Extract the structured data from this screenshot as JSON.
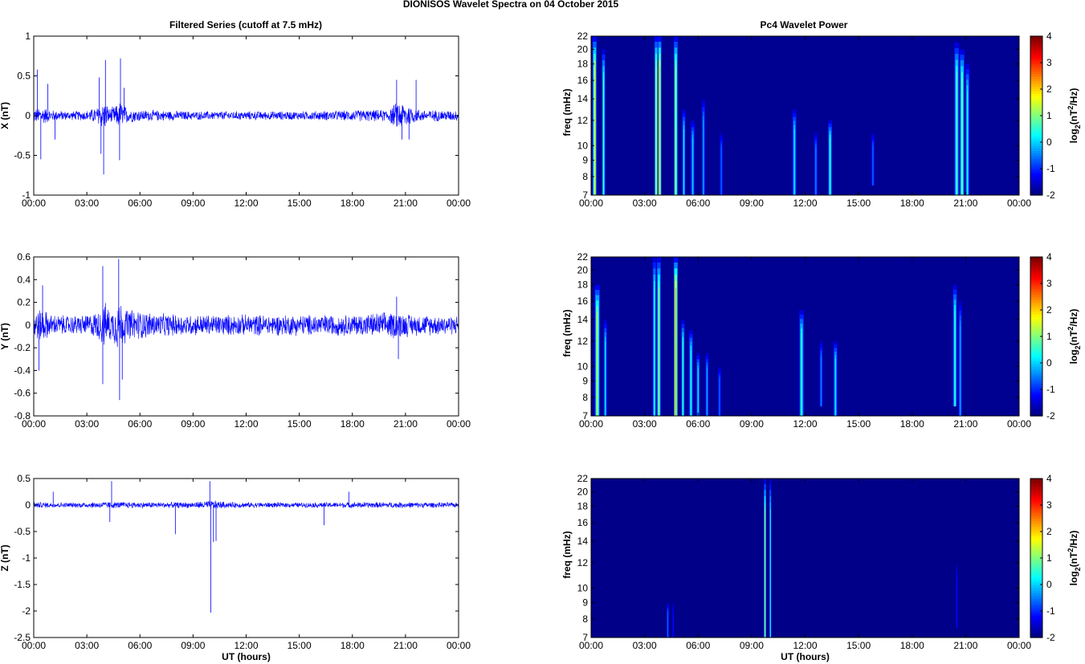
{
  "figure": {
    "title": "DIONISOS Wavelet Spectra on 04 October   2015",
    "left_column_title": "Filtered Series (cutoff at 7.5 mHz)",
    "right_column_title": "Pc4 Wavelet Power",
    "xlabel": "UT (hours)"
  },
  "chart_data": [
    {
      "type": "line",
      "panel": "X",
      "ylabel": "X (nT)",
      "xlabel": "",
      "xlim": [
        0,
        24
      ],
      "ylim": [
        -1,
        1
      ],
      "x_ticks": [
        "00:00",
        "03:00",
        "06:00",
        "09:00",
        "12:00",
        "15:00",
        "18:00",
        "21:00",
        "00:00"
      ],
      "y_ticks": [
        "-1",
        "-0.5",
        "0",
        "0.5",
        "1"
      ],
      "y_tick_values": [
        -1,
        -0.5,
        0,
        0.5,
        1
      ],
      "color": "#0000ff",
      "noise_envelope": {
        "x": [
          0,
          0.5,
          1,
          2,
          3,
          3.6,
          4,
          4.3,
          4.7,
          4.9,
          5.3,
          6,
          9,
          12,
          15,
          17.5,
          18.5,
          20,
          20.6,
          21,
          21.5,
          22,
          24
        ],
        "amp": [
          0.1,
          0.12,
          0.08,
          0.06,
          0.07,
          0.12,
          0.2,
          0.1,
          0.15,
          0.2,
          0.1,
          0.08,
          0.06,
          0.06,
          0.06,
          0.07,
          0.08,
          0.08,
          0.2,
          0.18,
          0.1,
          0.08,
          0.07
        ]
      },
      "spikes": [
        [
          0.2,
          0.58
        ],
        [
          0.4,
          -0.55
        ],
        [
          0.8,
          0.4
        ],
        [
          1.2,
          -0.3
        ],
        [
          3.7,
          0.48
        ],
        [
          3.8,
          -0.48
        ],
        [
          3.95,
          -0.74
        ],
        [
          4.05,
          0.7
        ],
        [
          4.9,
          0.72
        ],
        [
          4.85,
          -0.56
        ],
        [
          5.1,
          0.35
        ],
        [
          20.5,
          0.45
        ],
        [
          20.8,
          -0.3
        ],
        [
          21.2,
          -0.3
        ],
        [
          21.6,
          0.45
        ]
      ]
    },
    {
      "type": "line",
      "panel": "Y",
      "ylabel": "Y (nT)",
      "xlabel": "",
      "xlim": [
        0,
        24
      ],
      "ylim": [
        -0.8,
        0.6
      ],
      "x_ticks": [
        "00:00",
        "03:00",
        "06:00",
        "09:00",
        "12:00",
        "15:00",
        "18:00",
        "21:00",
        "00:00"
      ],
      "y_ticks": [
        "-0.8",
        "-0.6",
        "-0.4",
        "-0.2",
        "0",
        "0.2",
        "0.4",
        "0.6"
      ],
      "y_tick_values": [
        -0.8,
        -0.6,
        -0.4,
        -0.2,
        0,
        0.2,
        0.4,
        0.6
      ],
      "color": "#0000ff",
      "noise_envelope": {
        "x": [
          0,
          0.5,
          1,
          2,
          3,
          3.6,
          4,
          4.4,
          4.8,
          5.2,
          6,
          7,
          9,
          12,
          15,
          18,
          20.5,
          21.5,
          24
        ],
        "amp": [
          0.14,
          0.16,
          0.1,
          0.09,
          0.1,
          0.13,
          0.22,
          0.14,
          0.26,
          0.16,
          0.14,
          0.11,
          0.1,
          0.1,
          0.1,
          0.1,
          0.13,
          0.1,
          0.09
        ]
      },
      "spikes": [
        [
          0.3,
          -0.4
        ],
        [
          0.5,
          0.35
        ],
        [
          3.9,
          0.52
        ],
        [
          3.9,
          -0.52
        ],
        [
          4.8,
          0.58
        ],
        [
          4.85,
          -0.66
        ],
        [
          5.0,
          -0.48
        ],
        [
          20.5,
          0.25
        ],
        [
          20.6,
          -0.3
        ]
      ]
    },
    {
      "type": "line",
      "panel": "Z",
      "ylabel": "Z (nT)",
      "xlabel": "UT (hours)",
      "xlim": [
        0,
        24
      ],
      "ylim": [
        -2.5,
        0.5
      ],
      "x_ticks": [
        "00:00",
        "03:00",
        "06:00",
        "09:00",
        "12:00",
        "15:00",
        "18:00",
        "21:00",
        "00:00"
      ],
      "y_ticks": [
        "-2.5",
        "-2",
        "-1.5",
        "-1",
        "-0.5",
        "0",
        "0.5"
      ],
      "y_tick_values": [
        -2.5,
        -2,
        -1.5,
        -1,
        -0.5,
        0,
        0.5
      ],
      "color": "#0000ff",
      "noise_envelope": {
        "x": [
          0,
          2,
          4,
          6,
          9,
          10,
          11,
          15,
          18,
          21,
          24
        ],
        "amp": [
          0.06,
          0.05,
          0.07,
          0.06,
          0.06,
          0.1,
          0.06,
          0.05,
          0.06,
          0.06,
          0.05
        ]
      },
      "spikes": [
        [
          1.1,
          0.25
        ],
        [
          4.4,
          0.45
        ],
        [
          4.3,
          -0.32
        ],
        [
          8.0,
          -0.55
        ],
        [
          9.95,
          0.45
        ],
        [
          10.0,
          -2.03
        ],
        [
          10.15,
          -0.7
        ],
        [
          10.3,
          -0.68
        ],
        [
          16.4,
          -0.38
        ],
        [
          17.8,
          0.25
        ]
      ]
    },
    {
      "type": "heatmap",
      "panel": "X",
      "title": "Pc4 Wavelet Power",
      "ylabel": "freq (mHz)",
      "xlabel": "",
      "xlim": [
        0,
        24
      ],
      "ylim": [
        7,
        22
      ],
      "y_scale": "log",
      "x_ticks": [
        "00:00",
        "03:00",
        "06:00",
        "09:00",
        "12:00",
        "15:00",
        "18:00",
        "21:00",
        "00:00"
      ],
      "y_ticks": [
        "7",
        "8",
        "9",
        "10",
        "12",
        "14",
        "16",
        "18",
        "20",
        "22"
      ],
      "colorbar": {
        "label": "log2(nT^2/Hz)",
        "range": [
          -2,
          4
        ],
        "ticks": [
          "-2",
          "-1",
          "0",
          "1",
          "2",
          "3",
          "4"
        ],
        "colormap": "jet"
      },
      "background_level": -1.9,
      "bursts": [
        {
          "t": 0.2,
          "w": 0.12,
          "flo": 7,
          "fhi": 22,
          "peak": 1.8
        },
        {
          "t": 0.7,
          "w": 0.1,
          "flo": 7,
          "fhi": 20,
          "peak": 0.8
        },
        {
          "t": 3.65,
          "w": 0.1,
          "flo": 7,
          "fhi": 22,
          "peak": 1.6
        },
        {
          "t": 3.85,
          "w": 0.1,
          "flo": 7,
          "fhi": 22,
          "peak": 2.2
        },
        {
          "t": 4.75,
          "w": 0.12,
          "flo": 7,
          "fhi": 22,
          "peak": 1.4
        },
        {
          "t": 5.2,
          "w": 0.1,
          "flo": 7,
          "fhi": 13,
          "peak": 0.2
        },
        {
          "t": 5.7,
          "w": 0.12,
          "flo": 7,
          "fhi": 12,
          "peak": 0.0
        },
        {
          "t": 6.3,
          "w": 0.1,
          "flo": 7,
          "fhi": 14,
          "peak": -0.2
        },
        {
          "t": 7.3,
          "w": 0.1,
          "flo": 7,
          "fhi": 11,
          "peak": -0.6
        },
        {
          "t": 11.4,
          "w": 0.12,
          "flo": 7,
          "fhi": 13,
          "peak": 0.2
        },
        {
          "t": 12.6,
          "w": 0.1,
          "flo": 7,
          "fhi": 11,
          "peak": -0.4
        },
        {
          "t": 13.4,
          "w": 0.12,
          "flo": 7,
          "fhi": 12,
          "peak": 0.6
        },
        {
          "t": 15.8,
          "w": 0.1,
          "flo": 7.5,
          "fhi": 11,
          "peak": -0.6
        },
        {
          "t": 20.5,
          "w": 0.14,
          "flo": 7,
          "fhi": 21,
          "peak": 0.8
        },
        {
          "t": 20.8,
          "w": 0.14,
          "flo": 7,
          "fhi": 20,
          "peak": 1.0
        },
        {
          "t": 21.1,
          "w": 0.12,
          "flo": 7,
          "fhi": 18,
          "peak": 0.4
        }
      ]
    },
    {
      "type": "heatmap",
      "panel": "Y",
      "ylabel": "freq (mHz)",
      "xlabel": "",
      "xlim": [
        0,
        24
      ],
      "ylim": [
        7,
        22
      ],
      "y_scale": "log",
      "x_ticks": [
        "00:00",
        "03:00",
        "06:00",
        "09:00",
        "12:00",
        "15:00",
        "18:00",
        "21:00",
        "00:00"
      ],
      "y_ticks": [
        "7",
        "8",
        "9",
        "10",
        "12",
        "14",
        "16",
        "18",
        "20",
        "22"
      ],
      "colorbar": {
        "label": "log2(nT^2/Hz)",
        "range": [
          -2,
          4
        ],
        "ticks": [
          "-2",
          "-1",
          "0",
          "1",
          "2",
          "3",
          "4"
        ],
        "colormap": "jet"
      },
      "background_level": -1.9,
      "bursts": [
        {
          "t": 0.35,
          "w": 0.15,
          "flo": 7,
          "fhi": 18,
          "peak": 1.4
        },
        {
          "t": 0.8,
          "w": 0.1,
          "flo": 7,
          "fhi": 14,
          "peak": 0.2
        },
        {
          "t": 3.55,
          "w": 0.1,
          "flo": 7,
          "fhi": 22,
          "peak": 0.6
        },
        {
          "t": 3.8,
          "w": 0.12,
          "flo": 7,
          "fhi": 22,
          "peak": 1.2
        },
        {
          "t": 4.75,
          "w": 0.12,
          "flo": 7,
          "fhi": 22,
          "peak": 2.4
        },
        {
          "t": 5.15,
          "w": 0.1,
          "flo": 7,
          "fhi": 14,
          "peak": 0.6
        },
        {
          "t": 5.6,
          "w": 0.12,
          "flo": 7,
          "fhi": 13,
          "peak": 0.4
        },
        {
          "t": 6.0,
          "w": 0.1,
          "flo": 7,
          "fhi": 11,
          "peak": 0.2
        },
        {
          "t": 6.5,
          "w": 0.1,
          "flo": 7,
          "fhi": 11,
          "peak": -0.2
        },
        {
          "t": 7.2,
          "w": 0.1,
          "flo": 7,
          "fhi": 10,
          "peak": -0.6
        },
        {
          "t": 11.8,
          "w": 0.14,
          "flo": 7,
          "fhi": 15,
          "peak": 0.6
        },
        {
          "t": 12.9,
          "w": 0.1,
          "flo": 7.5,
          "fhi": 12,
          "peak": -0.4
        },
        {
          "t": 13.7,
          "w": 0.12,
          "flo": 7,
          "fhi": 12,
          "peak": 0.2
        },
        {
          "t": 20.4,
          "w": 0.12,
          "flo": 7.5,
          "fhi": 18,
          "peak": 0.6
        },
        {
          "t": 20.7,
          "w": 0.1,
          "flo": 7,
          "fhi": 16,
          "peak": -0.2
        }
      ]
    },
    {
      "type": "heatmap",
      "panel": "Z",
      "ylabel": "freq (mHz)",
      "xlabel": "UT (hours)",
      "xlim": [
        0,
        24
      ],
      "ylim": [
        7,
        22
      ],
      "y_scale": "log",
      "x_ticks": [
        "00:00",
        "03:00",
        "06:00",
        "09:00",
        "12:00",
        "15:00",
        "18:00",
        "21:00",
        "00:00"
      ],
      "y_ticks": [
        "7",
        "8",
        "9",
        "10",
        "12",
        "14",
        "16",
        "18",
        "20",
        "22"
      ],
      "colorbar": {
        "label": "log2(nT^2/Hz)",
        "range": [
          -2,
          4
        ],
        "ticks": [
          "-2",
          "-1",
          "0",
          "1",
          "2",
          "3",
          "4"
        ],
        "colormap": "jet"
      },
      "background_level": -1.95,
      "bursts": [
        {
          "t": 4.3,
          "w": 0.08,
          "flo": 7,
          "fhi": 9,
          "peak": -0.6
        },
        {
          "t": 4.6,
          "w": 0.06,
          "flo": 7,
          "fhi": 9,
          "peak": -1.2
        },
        {
          "t": 9.75,
          "w": 0.07,
          "flo": 7,
          "fhi": 22,
          "peak": 1.2
        },
        {
          "t": 10.05,
          "w": 0.06,
          "flo": 7,
          "fhi": 22,
          "peak": 0.4
        },
        {
          "t": 20.5,
          "w": 0.06,
          "flo": 7.5,
          "fhi": 12,
          "peak": -1.2
        }
      ]
    }
  ]
}
